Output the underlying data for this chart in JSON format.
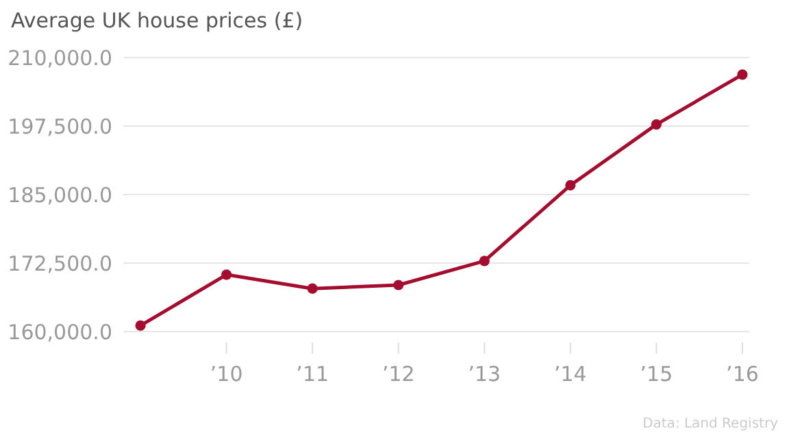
{
  "chart_data": {
    "type": "line",
    "title": "Average UK house prices (£)",
    "x": [
      2009,
      2010,
      2011,
      2012,
      2013,
      2014,
      2015,
      2016
    ],
    "series": [
      {
        "color": "#a50d2f",
        "values": [
          161100,
          170400,
          167850,
          168500,
          172900,
          186700,
          197800,
          206900
        ]
      }
    ],
    "xlim": [
      2008.8,
      2016.08
    ],
    "xticks": [
      {
        "value": 2010,
        "label": "’10"
      },
      {
        "value": 2011,
        "label": "’11"
      },
      {
        "value": 2012,
        "label": "’12"
      },
      {
        "value": 2013,
        "label": "’13"
      },
      {
        "value": 2014,
        "label": "’14"
      },
      {
        "value": 2015,
        "label": "’15"
      },
      {
        "value": 2016,
        "label": "’16"
      }
    ],
    "ylim": [
      160000,
      210000
    ],
    "yticks": [
      {
        "value": 160000,
        "label": "160,000.0"
      },
      {
        "value": 172500,
        "label": "172,500.0"
      },
      {
        "value": 185000,
        "label": "185,000.0"
      },
      {
        "value": 197500,
        "label": "197,500.0"
      },
      {
        "value": 210000,
        "label": "210,000.0"
      }
    ],
    "grid": "y",
    "marker": "circle",
    "line_style": "solid",
    "annotations": [
      "Data: Land Registry"
    ]
  }
}
